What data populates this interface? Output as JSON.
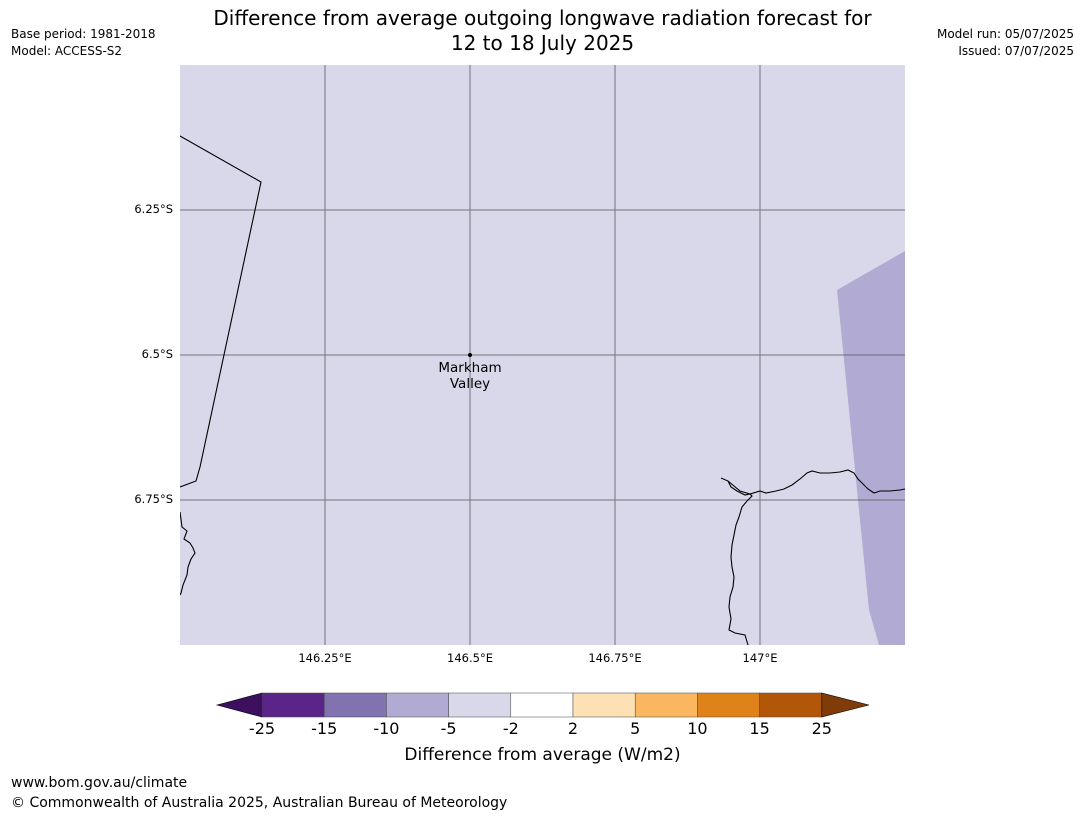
{
  "header": {
    "title_line1": "Difference from average outgoing longwave radiation forecast for",
    "title_line2": "12 to 18 July 2025",
    "base_period": "Base period: 1981-2018",
    "model": "Model: ACCESS-S2",
    "model_run": "Model run: 05/07/2025",
    "issued": "Issued: 07/07/2025"
  },
  "map": {
    "background_color": "#d8d8ea",
    "anomaly_color": "#b1abd3",
    "place_label_line1": "Markham",
    "place_label_line2": "Valley",
    "lat_labels": [
      "6.25°S",
      "6.5°S",
      "6.75°S"
    ],
    "lon_labels": [
      "146.25°E",
      "146.5°E",
      "146.75°E",
      "147°E"
    ]
  },
  "colorbar": {
    "ticks": [
      "-25",
      "-15",
      "-10",
      "-5",
      "-2",
      "2",
      "5",
      "10",
      "15",
      "25"
    ],
    "colors": [
      "#3d0f5f",
      "#5a2489",
      "#8272b0",
      "#b1abd3",
      "#d8d8ea",
      "#ffffff",
      "#fee0b5",
      "#fbb760",
      "#e0821a",
      "#b25608",
      "#7f3b08"
    ],
    "label": "Difference from average (W/m2)"
  },
  "footer": {
    "url": "www.bom.gov.au/climate",
    "copyright": "© Commonwealth of Australia 2025, Australian Bureau of Meteorology"
  }
}
